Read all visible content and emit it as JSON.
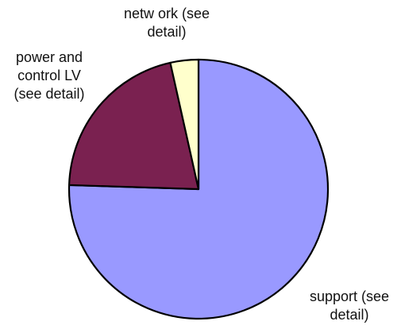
{
  "chart_data": {
    "type": "pie",
    "title": "",
    "start_angle_deg": 0,
    "direction": "clockwise",
    "slices": [
      {
        "label": [
          "support (see",
          "detail)"
        ],
        "value": 75.5,
        "color": "#9999ff"
      },
      {
        "label": [
          "power and",
          "control LV",
          "(see detail)"
        ],
        "value": 21.0,
        "color": "#7a2150"
      },
      {
        "label": [
          "netw ork (see",
          "detail)"
        ],
        "value": 3.5,
        "color": "#ffffcc"
      }
    ]
  }
}
